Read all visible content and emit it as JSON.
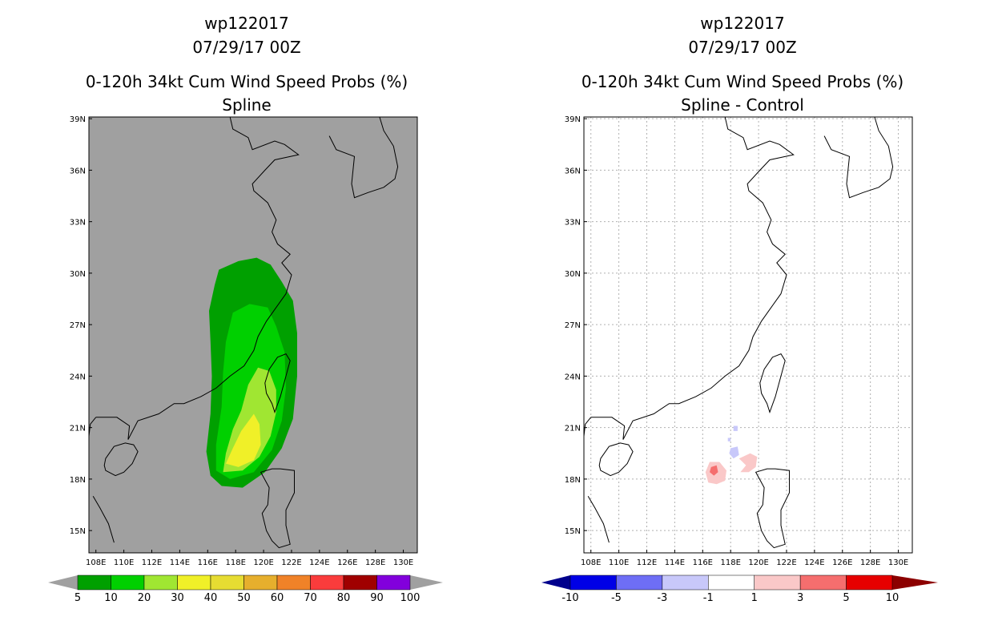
{
  "chart_data": [
    {
      "type": "heatmap",
      "id": "left",
      "title_lines": [
        "wp122017",
        "07/29/17 00Z",
        "0-120h 34kt Cum Wind Speed Probs (%)",
        "Spline"
      ],
      "x_ticks": [
        "108E",
        "110E",
        "112E",
        "114E",
        "116E",
        "118E",
        "120E",
        "122E",
        "124E",
        "126E",
        "128E",
        "130E"
      ],
      "x_values": [
        108,
        110,
        112,
        114,
        116,
        118,
        120,
        122,
        124,
        126,
        128,
        130
      ],
      "y_ticks": [
        "39N",
        "36N",
        "33N",
        "30N",
        "27N",
        "24N",
        "21N",
        "18N",
        "15N"
      ],
      "y_values": [
        39,
        36,
        33,
        30,
        27,
        24,
        21,
        18,
        15
      ],
      "xlim": [
        107.5,
        131
      ],
      "ylim": [
        13.7,
        39.1
      ],
      "grid": false,
      "colorbar": {
        "labels": [
          "5",
          "10",
          "20",
          "30",
          "40",
          "50",
          "60",
          "70",
          "80",
          "90",
          "100"
        ],
        "colors": [
          "#00a000",
          "#00d000",
          "#a0e632",
          "#f0f028",
          "#e6dc32",
          "#e6af2d",
          "#f08228",
          "#fa3c3c",
          "#a00000",
          "#8200dc"
        ],
        "under_color": "#a0a0a0",
        "over_color": "#a0a0a0"
      },
      "contour_levels": [
        {
          "level": "5-10",
          "color": "#00a000",
          "polygon": [
            [
              116.8,
              30.2
            ],
            [
              118.2,
              30.7
            ],
            [
              119.5,
              30.9
            ],
            [
              120.5,
              30.5
            ],
            [
              121.3,
              29.5
            ],
            [
              122.1,
              28.4
            ],
            [
              122.4,
              26.5
            ],
            [
              122.4,
              24.0
            ],
            [
              122.1,
              21.5
            ],
            [
              121.3,
              19.8
            ],
            [
              120.1,
              18.4
            ],
            [
              118.5,
              17.5
            ],
            [
              117.0,
              17.6
            ],
            [
              116.2,
              18.2
            ],
            [
              115.9,
              19.6
            ],
            [
              116.2,
              21.8
            ],
            [
              116.3,
              24.0
            ],
            [
              116.2,
              26.0
            ],
            [
              116.1,
              27.8
            ],
            [
              116.5,
              29.3
            ]
          ]
        },
        {
          "level": "10-20",
          "color": "#00d000",
          "polygon": [
            [
              117.8,
              27.7
            ],
            [
              119.0,
              28.2
            ],
            [
              120.3,
              28.0
            ],
            [
              120.9,
              26.9
            ],
            [
              121.5,
              25.4
            ],
            [
              121.6,
              23.3
            ],
            [
              121.3,
              21.4
            ],
            [
              120.6,
              19.7
            ],
            [
              119.3,
              18.4
            ],
            [
              117.6,
              18.0
            ],
            [
              116.6,
              18.5
            ],
            [
              116.6,
              20.0
            ],
            [
              117.0,
              22.2
            ],
            [
              117.1,
              24.2
            ],
            [
              117.3,
              26.0
            ]
          ]
        },
        {
          "level": "20-30",
          "color": "#a0e632",
          "polygon": [
            [
              119.6,
              24.5
            ],
            [
              120.4,
              24.3
            ],
            [
              120.9,
              23.2
            ],
            [
              120.9,
              21.9
            ],
            [
              120.5,
              20.5
            ],
            [
              119.7,
              19.3
            ],
            [
              118.5,
              18.5
            ],
            [
              117.1,
              18.4
            ],
            [
              117.3,
              19.5
            ],
            [
              117.8,
              20.9
            ],
            [
              118.4,
              22.0
            ],
            [
              118.9,
              23.5
            ]
          ]
        },
        {
          "level": "30-40",
          "color": "#f0f028",
          "polygon": [
            [
              119.3,
              21.8
            ],
            [
              119.7,
              21.2
            ],
            [
              119.8,
              20.0
            ],
            [
              119.3,
              19.1
            ],
            [
              118.2,
              18.7
            ],
            [
              117.3,
              18.9
            ],
            [
              117.8,
              19.8
            ],
            [
              118.4,
              20.8
            ]
          ]
        }
      ]
    },
    {
      "type": "heatmap",
      "id": "right",
      "title_lines": [
        "wp122017",
        "07/29/17 00Z",
        "0-120h 34kt Cum Wind Speed Probs (%)",
        "Spline - Control"
      ],
      "x_ticks": [
        "108E",
        "110E",
        "112E",
        "114E",
        "116E",
        "118E",
        "120E",
        "122E",
        "124E",
        "126E",
        "128E",
        "130E"
      ],
      "x_values": [
        108,
        110,
        112,
        114,
        116,
        118,
        120,
        122,
        124,
        126,
        128,
        130
      ],
      "y_ticks": [
        "39N",
        "36N",
        "33N",
        "30N",
        "27N",
        "24N",
        "21N",
        "18N",
        "15N"
      ],
      "y_values": [
        39,
        36,
        33,
        30,
        27,
        24,
        21,
        18,
        15
      ],
      "xlim": [
        107.5,
        131
      ],
      "ylim": [
        13.7,
        39.1
      ],
      "grid": true,
      "colorbar": {
        "labels": [
          "-10",
          "-5",
          "-3",
          "-1",
          "1",
          "3",
          "5",
          "10"
        ],
        "colors": [
          "#0000e6",
          "#6e6ef5",
          "#c8c8fa",
          "#ffffff",
          "#fac8c8",
          "#f56e6e",
          "#e60000"
        ],
        "under_color": "#00008c",
        "over_color": "#8c0000"
      },
      "contour_levels": [
        {
          "level": "1-3",
          "color": "#fac8c8",
          "polygon": [
            [
              116.5,
              19.0
            ],
            [
              117.2,
              19.0
            ],
            [
              117.7,
              18.5
            ],
            [
              117.6,
              17.9
            ],
            [
              117.0,
              17.7
            ],
            [
              116.4,
              17.8
            ],
            [
              116.2,
              18.4
            ]
          ]
        },
        {
          "level": "1-3",
          "color": "#fac8c8",
          "polygon": [
            [
              118.6,
              19.2
            ],
            [
              119.4,
              19.5
            ],
            [
              119.9,
              19.3
            ],
            [
              119.8,
              18.7
            ],
            [
              119.3,
              18.4
            ],
            [
              118.7,
              18.4
            ],
            [
              119.1,
              18.8
            ]
          ]
        },
        {
          "level": "3-5",
          "color": "#f56e6e",
          "polygon": [
            [
              116.6,
              18.7
            ],
            [
              117.0,
              18.8
            ],
            [
              117.1,
              18.4
            ],
            [
              116.8,
              18.2
            ],
            [
              116.5,
              18.4
            ]
          ]
        },
        {
          "level": "-3--1",
          "color": "#c8c8fa",
          "polygon": [
            [
              118.0,
              19.8
            ],
            [
              118.5,
              19.9
            ],
            [
              118.6,
              19.4
            ],
            [
              118.2,
              19.2
            ],
            [
              117.9,
              19.5
            ]
          ]
        },
        {
          "level": "-3--1",
          "color": "#c8c8fa",
          "polygon": [
            [
              118.2,
              21.1
            ],
            [
              118.5,
              21.1
            ],
            [
              118.5,
              20.8
            ],
            [
              118.2,
              20.8
            ]
          ]
        },
        {
          "level": "-3--1",
          "color": "#c8c8fa",
          "polygon": [
            [
              117.8,
              20.4
            ],
            [
              118.0,
              20.4
            ],
            [
              118.0,
              20.2
            ],
            [
              117.8,
              20.2
            ]
          ]
        }
      ]
    }
  ]
}
